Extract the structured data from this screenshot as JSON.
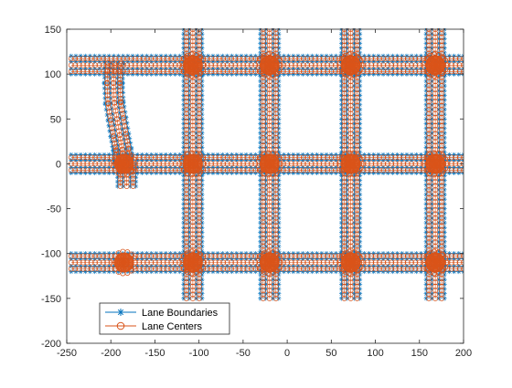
{
  "chart_data": {
    "type": "scatter",
    "xlim": [
      -250,
      200
    ],
    "ylim": [
      -200,
      150
    ],
    "xticks": [
      -250,
      -200,
      -150,
      -100,
      -50,
      0,
      50,
      100,
      150,
      200
    ],
    "yticks": [
      -200,
      -150,
      -100,
      -50,
      0,
      50,
      100,
      150
    ],
    "grid": false,
    "legend_position": "bottom-left",
    "colors": {
      "boundary": "#0072BD",
      "center": "#D95319",
      "axis": "#262626"
    },
    "road_network": {
      "vertical_roads_x": [
        -107,
        -20,
        72,
        168
      ],
      "vertical_road_y_range": [
        -150,
        150
      ],
      "horizontal_roads_y": [
        110,
        0,
        -110
      ],
      "horizontal_road_x_range": [
        -245,
        200
      ],
      "curved_road": [
        [
          -196,
          112
        ],
        [
          -197,
          90
        ],
        [
          -196,
          68
        ],
        [
          -193,
          50
        ],
        [
          -190,
          32
        ],
        [
          -187,
          16
        ],
        [
          -186,
          2
        ]
      ],
      "stub_road": [
        [
          -182,
          0
        ],
        [
          -182,
          -25
        ]
      ],
      "intersections": [
        [
          -107,
          110
        ],
        [
          -20,
          110
        ],
        [
          72,
          110
        ],
        [
          168,
          110
        ],
        [
          -185,
          0
        ],
        [
          -107,
          0
        ],
        [
          -20,
          0
        ],
        [
          72,
          0
        ],
        [
          168,
          0
        ],
        [
          -185,
          -110
        ],
        [
          -107,
          -110
        ],
        [
          -20,
          -110
        ],
        [
          72,
          -110
        ],
        [
          168,
          -110
        ]
      ]
    },
    "series": [
      {
        "name": "Lane Boundaries",
        "marker": "asterisk",
        "color": "#0072BD"
      },
      {
        "name": "Lane Centers",
        "marker": "circle",
        "color": "#D95319"
      }
    ]
  }
}
